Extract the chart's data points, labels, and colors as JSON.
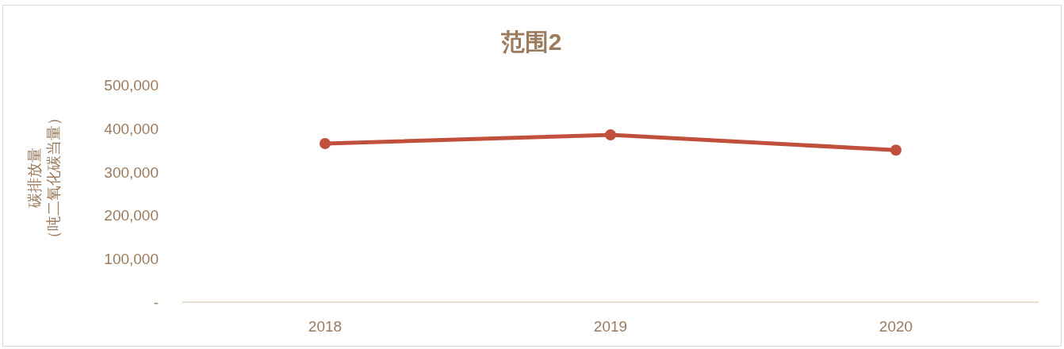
{
  "chart_data": {
    "type": "line",
    "title": "范围2",
    "ylabel": "碳排放量",
    "annotations": [
      "（吨二氧化碳当量）"
    ],
    "categories": [
      "2018",
      "2019",
      "2020"
    ],
    "series": [
      {
        "color": "#c0503c",
        "values": [
          365000,
          385000,
          350000
        ]
      }
    ],
    "ylim": [
      0,
      500000
    ],
    "yticks": [
      {
        "value": 0,
        "label": "-"
      },
      {
        "value": 100000,
        "label": "100,000"
      },
      {
        "value": 200000,
        "label": "200,000"
      },
      {
        "value": 300000,
        "label": "300,000"
      },
      {
        "value": 400000,
        "label": "400,000"
      },
      {
        "value": 500000,
        "label": "500,000"
      }
    ],
    "marker": "circle"
  }
}
